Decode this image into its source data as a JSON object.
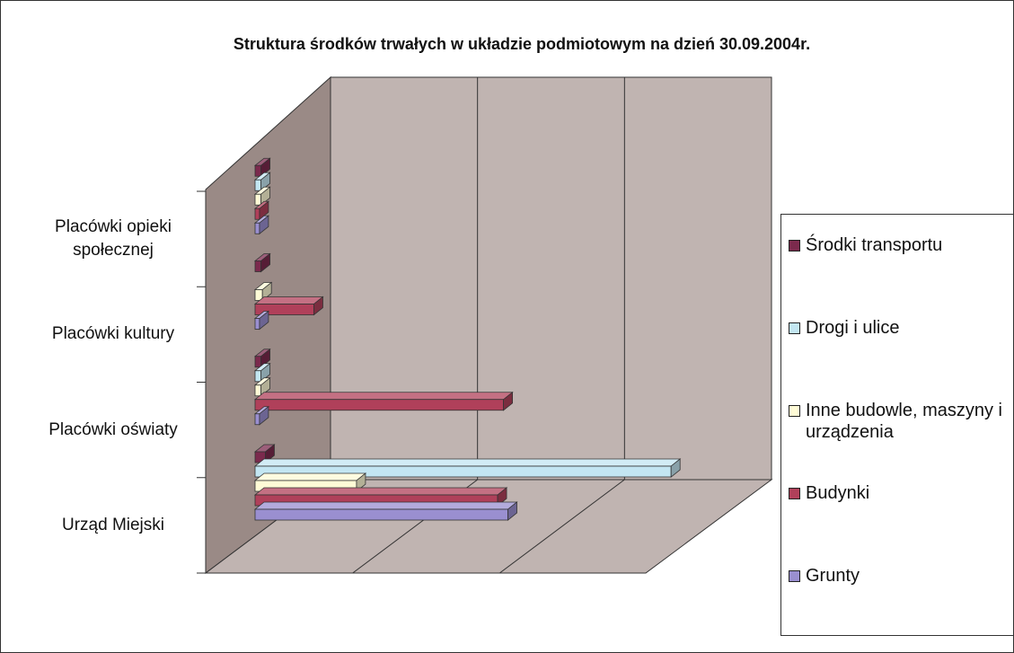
{
  "chart_data": {
    "type": "bar3d",
    "orientation": "horizontal",
    "title": "Struktura środków trwałych w układzie podmiotowym na dzień 30.09.2004r.",
    "categories": [
      "Urząd Miejski",
      "Placówki oświaty",
      "Placówki kultury",
      "Placówki opieki społecznej"
    ],
    "series": [
      {
        "name": "Środki transportu",
        "color": "#7b2a4d",
        "values": [
          0.07,
          0.04,
          0.04,
          0.04
        ]
      },
      {
        "name": "Drogi i ulice",
        "color": "#c3e6f2",
        "values": [
          2.83,
          0.04,
          null,
          0.04
        ]
      },
      {
        "name": "Inne budowle, maszyny i urządzenia",
        "color": "#fffbd6",
        "values": [
          0.69,
          0.04,
          0.05,
          0.04
        ]
      },
      {
        "name": "Budynki",
        "color": "#b0405a",
        "values": [
          1.65,
          1.69,
          0.4,
          0.03
        ]
      },
      {
        "name": "Grunty",
        "color": "#9a8fd0",
        "values": [
          1.72,
          0.03,
          0.03,
          0.03
        ]
      }
    ],
    "xlim": [
      0,
      3
    ],
    "xticks": [
      0,
      1,
      2,
      3
    ],
    "grid": true,
    "legend": "right"
  }
}
